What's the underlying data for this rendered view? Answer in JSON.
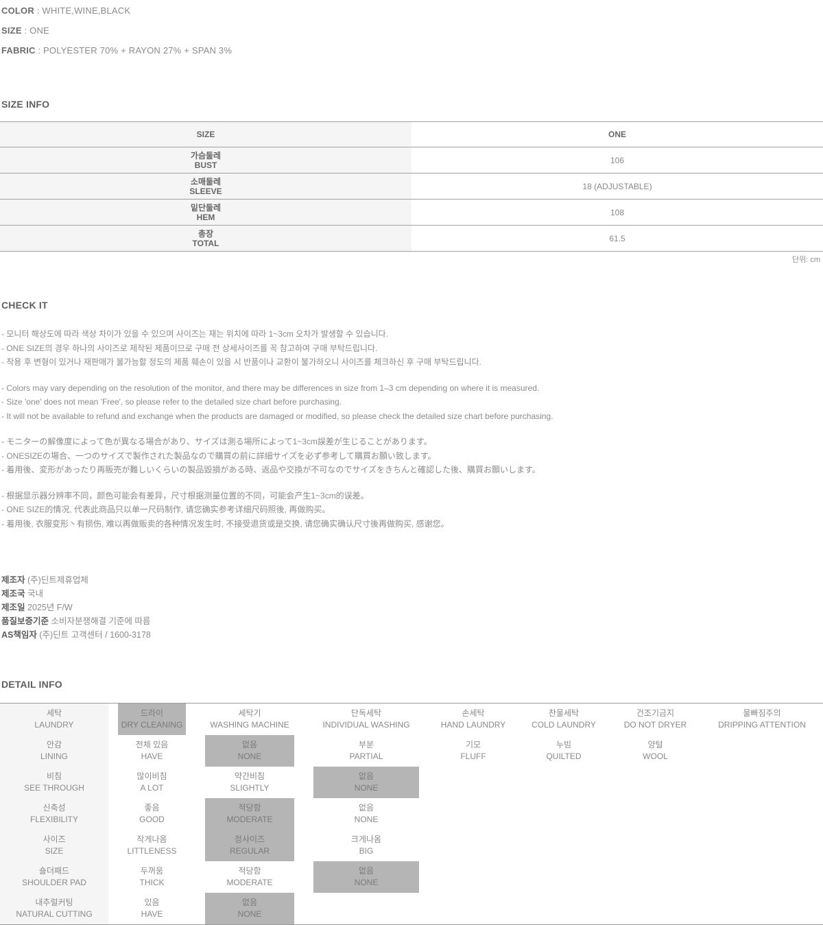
{
  "specs": [
    {
      "label": "COLOR",
      "value": "WHITE,WINE,BLACK"
    },
    {
      "label": "SIZE",
      "value": "ONE"
    },
    {
      "label": "FABRIC",
      "value": "POLYESTER 70% + RAYON 27% + SPAN 3%"
    }
  ],
  "size_info": {
    "heading": "SIZE INFO",
    "columns": [
      "SIZE",
      "ONE"
    ],
    "rows": [
      {
        "kr": "가슴둘레",
        "en": "BUST",
        "value": "106"
      },
      {
        "kr": "소매둘레",
        "en": "SLEEVE",
        "value": "18 (ADJUSTABLE)"
      },
      {
        "kr": "밑단둘레",
        "en": "HEM",
        "value": "108"
      },
      {
        "kr": "총장",
        "en": "TOTAL",
        "value": "61.5"
      }
    ],
    "unit_note": "단위: cm"
  },
  "check_it": {
    "heading": "CHECK IT",
    "paragraphs": [
      [
        "- 모니터 해상도에 따라 색상 차이가 있을 수 있으며 사이즈는 재는 위치에 따라 1~3cm 오차가 발생할 수 있습니다.",
        "- ONE SIZE의 경우 하나의 사이즈로 제작된 제품이므로 구매 전 상세사이즈를 꼭 참고하여 구매 부탁드립니다.",
        "- 착용 후 변형이 있거나 재판매가 불가능할 정도의 제품 훼손이 있을 시 반품이나 교환이 불가하오니 사이즈를 체크하신 후 구매 부탁드립니다."
      ],
      [
        "- Colors may vary depending on the resolution of the monitor, and there may be differences in size from 1–3 cm depending on where it is measured.",
        "- Size 'one' does not mean 'Free', so please refer to the detailed size chart before purchasing.",
        "- It will not be available to refund and exchange when the products are damaged or modified, so please check the detailed size chart before purchasing."
      ],
      [
        "- モニターの解像度によって色が異なる場合があり、サイズは測る場所によって1~3cm誤差が生じることがあります。",
        "- ONESIZEの場合、一つのサイズで製作された製品なので購買の前に詳細サイズを必ず参考して購買お願い致します。",
        "- 着用後、変形があったり再販売が難しいくらいの製品毀損がある時、返品や交換が不可なのでサイズをきちんと確認した後、購買お願いします。"
      ],
      [
        "- 根据显示器分辨率不同，颜色可能会有差异，尺寸根据测量位置的不同，可能会产生1~3cm的误差。",
        "- ONE SIZE的情况, 代表此商品只以单一尺码制作, 请您确实参考详细尺码照後, 再做购买。",
        "- 着用後, 衣服变形丶有损伤, 难以再做贩卖的各种情况发生时, 不接受退货或是交换, 请您确实确认尺寸後再做购买, 感谢您。"
      ]
    ]
  },
  "manufacturer": [
    {
      "label": "제조자",
      "value": "(주)딘트제휴업체"
    },
    {
      "label": "제조국",
      "value": "국내"
    },
    {
      "label": "제조일",
      "value": "2025년 F/W"
    },
    {
      "label": "품질보증기준",
      "value": "소비자분쟁해결 기준에 따름"
    },
    {
      "label": "AS책임자",
      "value": "(주)딘트 고객센터 / 1600-3178"
    }
  ],
  "detail_info": {
    "heading": "DETAIL INFO",
    "rows": [
      {
        "cells": [
          {
            "kr": "세탁",
            "en": "LAUNDRY"
          },
          {
            "kr": "드라이",
            "en": "DRY CLEANING",
            "hl": true
          },
          {
            "kr": "세탁기",
            "en": "WASHING MACHINE"
          },
          {
            "kr": "단독세탁",
            "en": "INDIVIDUAL WASHING"
          },
          {
            "kr": "손세탁",
            "en": "HAND LAUNDRY"
          },
          {
            "kr": "찬물세탁",
            "en": "COLD LAUNDRY"
          },
          {
            "kr": "건조기금지",
            "en": "DO NOT DRYER"
          },
          {
            "kr": "물빠짐주의",
            "en": "DRIPPING ATTENTION"
          }
        ]
      },
      {
        "cells": [
          {
            "kr": "안감",
            "en": "LINING"
          },
          {
            "kr": "전체 있음",
            "en": "HAVE"
          },
          {
            "kr": "없음",
            "en": "NONE",
            "hl": true
          },
          {
            "kr": "부분",
            "en": "PARTIAL"
          },
          {
            "kr": "기모",
            "en": "FLUFF"
          },
          {
            "kr": "누빔",
            "en": "QUILTED"
          },
          {
            "kr": "양털",
            "en": "WOOL"
          }
        ]
      },
      {
        "cells": [
          {
            "kr": "비침",
            "en": "SEE THROUGH"
          },
          {
            "kr": "많이비침",
            "en": "A LOT"
          },
          {
            "kr": "약간비침",
            "en": "SLIGHTLY"
          },
          {
            "kr": "없음",
            "en": "NONE",
            "hl": true
          }
        ]
      },
      {
        "cells": [
          {
            "kr": "신축성",
            "en": "FLEXIBILITY"
          },
          {
            "kr": "좋음",
            "en": "GOOD"
          },
          {
            "kr": "적당함",
            "en": "MODERATE",
            "hl": true
          },
          {
            "kr": "없음",
            "en": "NONE"
          }
        ]
      },
      {
        "cells": [
          {
            "kr": "사이즈",
            "en": "SIZE"
          },
          {
            "kr": "작게나옴",
            "en": "LITTLENESS"
          },
          {
            "kr": "정사이즈",
            "en": "REGULAR",
            "hl": true
          },
          {
            "kr": "크게나옴",
            "en": "BIG"
          }
        ]
      },
      {
        "cells": [
          {
            "kr": "숄더패드",
            "en": "SHOULDER PAD"
          },
          {
            "kr": "두꺼움",
            "en": "THICK"
          },
          {
            "kr": "적당함",
            "en": "MODERATE"
          },
          {
            "kr": "없음",
            "en": "NONE",
            "hl": true
          }
        ]
      },
      {
        "cells": [
          {
            "kr": "내추럴커팅",
            "en": "NATURAL CUTTING"
          },
          {
            "kr": "있음",
            "en": "HAVE"
          },
          {
            "kr": "없음",
            "en": "NONE",
            "hl": true
          }
        ]
      }
    ]
  },
  "colors": {
    "highlight_bg": "#b5b5b5",
    "highlight_text": "#7a7a7a",
    "label_column_bg": "#f5f5f6",
    "table_border": "#a0a0a0",
    "body_text": "#8a8a8a",
    "heading_text": "#5f5f5f"
  }
}
